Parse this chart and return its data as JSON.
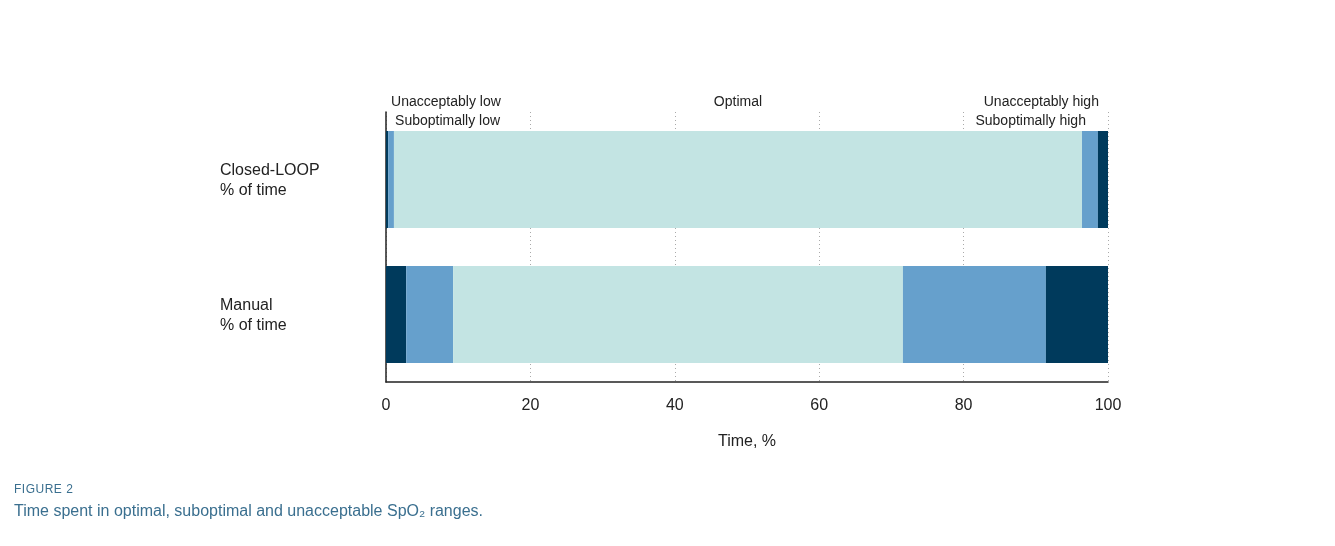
{
  "chart_data": {
    "type": "bar",
    "orientation": "horizontal",
    "stacked": true,
    "categories": [
      "Closed-LOOP\n% of time",
      "Manual\n% of time"
    ],
    "series": [
      {
        "name": "Unacceptably low",
        "color": "#003a5c",
        "values": [
          0.3,
          2.8
        ]
      },
      {
        "name": "Suboptimally low",
        "color": "#66a0cc",
        "values": [
          0.8,
          6.5
        ]
      },
      {
        "name": "Optimal",
        "color": "#c3e4e3",
        "values": [
          95.3,
          62.3
        ]
      },
      {
        "name": "Suboptimally high",
        "color": "#66a0cc",
        "values": [
          2.2,
          19.8
        ]
      },
      {
        "name": "Unacceptably high",
        "color": "#003a5c",
        "values": [
          1.4,
          8.6
        ]
      }
    ],
    "xlim": [
      0,
      100
    ],
    "xticks": [
      0,
      20,
      40,
      60,
      80,
      100
    ],
    "xlabel": "Time, %",
    "grid": "x",
    "legend": false,
    "annotations": [
      "FIGURE 2",
      "Time spent in optimal, suboptimal and unacceptable SpO₂ ranges."
    ]
  }
}
